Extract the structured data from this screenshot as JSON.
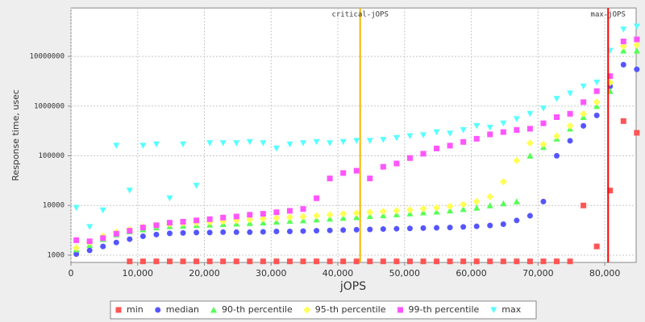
{
  "chart_data": {
    "type": "scatter",
    "xlabel": "jOPS",
    "ylabel": "Response time, usec",
    "xlim": [
      0,
      84700
    ],
    "ylim": [
      714,
      94000000
    ],
    "ylog": true,
    "grid": true,
    "xticks": [
      0,
      {
        "value": 10000,
        "label": "10,000"
      },
      {
        "value": 20000,
        "label": "20,000"
      },
      {
        "value": 30000,
        "label": "30,000"
      },
      {
        "value": 40000,
        "label": "40,000"
      },
      {
        "value": 50000,
        "label": "50,000"
      },
      {
        "value": 60000,
        "label": "60,000"
      },
      {
        "value": 70000,
        "label": "70,000"
      },
      {
        "value": 80000,
        "label": "80,000"
      }
    ],
    "yticks": [
      1000,
      10000,
      100000,
      1000000,
      10000000
    ],
    "annotations": [
      {
        "label": "critical-jOPS",
        "x": 43340,
        "color": "#f5b800"
      },
      {
        "label": "max-jOPS",
        "x": 80500,
        "color": "#ff0000"
      }
    ],
    "x": [
      800,
      2800,
      4800,
      6800,
      8800,
      10800,
      12800,
      14800,
      16800,
      18800,
      20800,
      22800,
      24800,
      26800,
      28800,
      30800,
      32800,
      34800,
      36800,
      38800,
      40800,
      42800,
      44800,
      46800,
      48800,
      50800,
      52800,
      54800,
      56800,
      58800,
      60800,
      62800,
      64800,
      66800,
      68800,
      70800,
      72800,
      74800,
      76800,
      78800,
      80800,
      82800,
      84800
    ],
    "series": [
      {
        "name": "min",
        "color": "#ff5555",
        "marker": "square",
        "values": [
          null,
          null,
          null,
          null,
          750,
          750,
          750,
          750,
          750,
          750,
          750,
          750,
          750,
          750,
          750,
          750,
          750,
          750,
          750,
          750,
          750,
          750,
          750,
          750,
          750,
          750,
          750,
          750,
          750,
          750,
          750,
          750,
          750,
          750,
          750,
          750,
          750,
          750,
          10000,
          1500,
          20000,
          500000,
          290000
        ]
      },
      {
        "name": "median",
        "color": "#5555ff",
        "marker": "circle",
        "values": [
          1050,
          1250,
          1500,
          1800,
          2100,
          2400,
          2600,
          2750,
          2800,
          2850,
          2850,
          2900,
          2900,
          2900,
          2950,
          3000,
          3000,
          3050,
          3100,
          3150,
          3200,
          3250,
          3300,
          3350,
          3400,
          3450,
          3500,
          3550,
          3600,
          3700,
          3800,
          3950,
          4200,
          5000,
          6200,
          12000,
          100000,
          200000,
          400000,
          650000,
          2500000,
          6800000,
          5500000
        ]
      },
      {
        "name": "90-th percentile",
        "color": "#55ff55",
        "marker": "triangle",
        "values": [
          1300,
          1600,
          2100,
          2600,
          3000,
          3300,
          3600,
          3800,
          3900,
          4000,
          4100,
          4200,
          4300,
          4400,
          4500,
          4700,
          4900,
          5000,
          5200,
          5400,
          5600,
          5800,
          6100,
          6300,
          6600,
          6900,
          7200,
          7500,
          7900,
          8400,
          9000,
          10000,
          11000,
          12000,
          100000,
          150000,
          220000,
          350000,
          600000,
          1000000,
          2000000,
          13000000,
          13000000
        ]
      },
      {
        "name": "95-th percentile",
        "color": "#ffff55",
        "marker": "diamond",
        "values": [
          1400,
          1800,
          2400,
          2900,
          3300,
          3700,
          4000,
          4200,
          4400,
          4500,
          4600,
          4800,
          5000,
          5200,
          5400,
          5600,
          5800,
          6000,
          6200,
          6500,
          6800,
          7000,
          7300,
          7600,
          7900,
          8200,
          8600,
          9000,
          9600,
          10500,
          12000,
          15000,
          30000,
          80000,
          180000,
          170000,
          250000,
          400000,
          700000,
          1200000,
          3000000,
          16000000,
          17000000
        ]
      },
      {
        "name": "99-th percentile",
        "color": "#ff55ff",
        "marker": "square",
        "values": [
          2000,
          1900,
          2200,
          2700,
          3100,
          3600,
          4000,
          4500,
          4700,
          5000,
          5300,
          5700,
          6000,
          6500,
          6800,
          7300,
          7800,
          8500,
          14000,
          35000,
          45000,
          50000,
          35000,
          60000,
          70000,
          90000,
          110000,
          140000,
          160000,
          190000,
          220000,
          270000,
          300000,
          330000,
          350000,
          450000,
          600000,
          700000,
          1200000,
          2000000,
          4000000,
          20000000,
          22000000
        ]
      },
      {
        "name": "max",
        "color": "#55ffff",
        "marker": "triangle-down",
        "values": [
          9000,
          3700,
          8000,
          160000,
          20000,
          160000,
          170000,
          14000,
          170000,
          25000,
          180000,
          180000,
          180000,
          190000,
          180000,
          140000,
          170000,
          180000,
          190000,
          180000,
          190000,
          200000,
          200000,
          210000,
          230000,
          250000,
          260000,
          300000,
          280000,
          330000,
          400000,
          370000,
          450000,
          550000,
          700000,
          900000,
          1400000,
          1800000,
          2500000,
          3000000,
          13000000,
          35000000,
          40000000
        ]
      }
    ]
  }
}
